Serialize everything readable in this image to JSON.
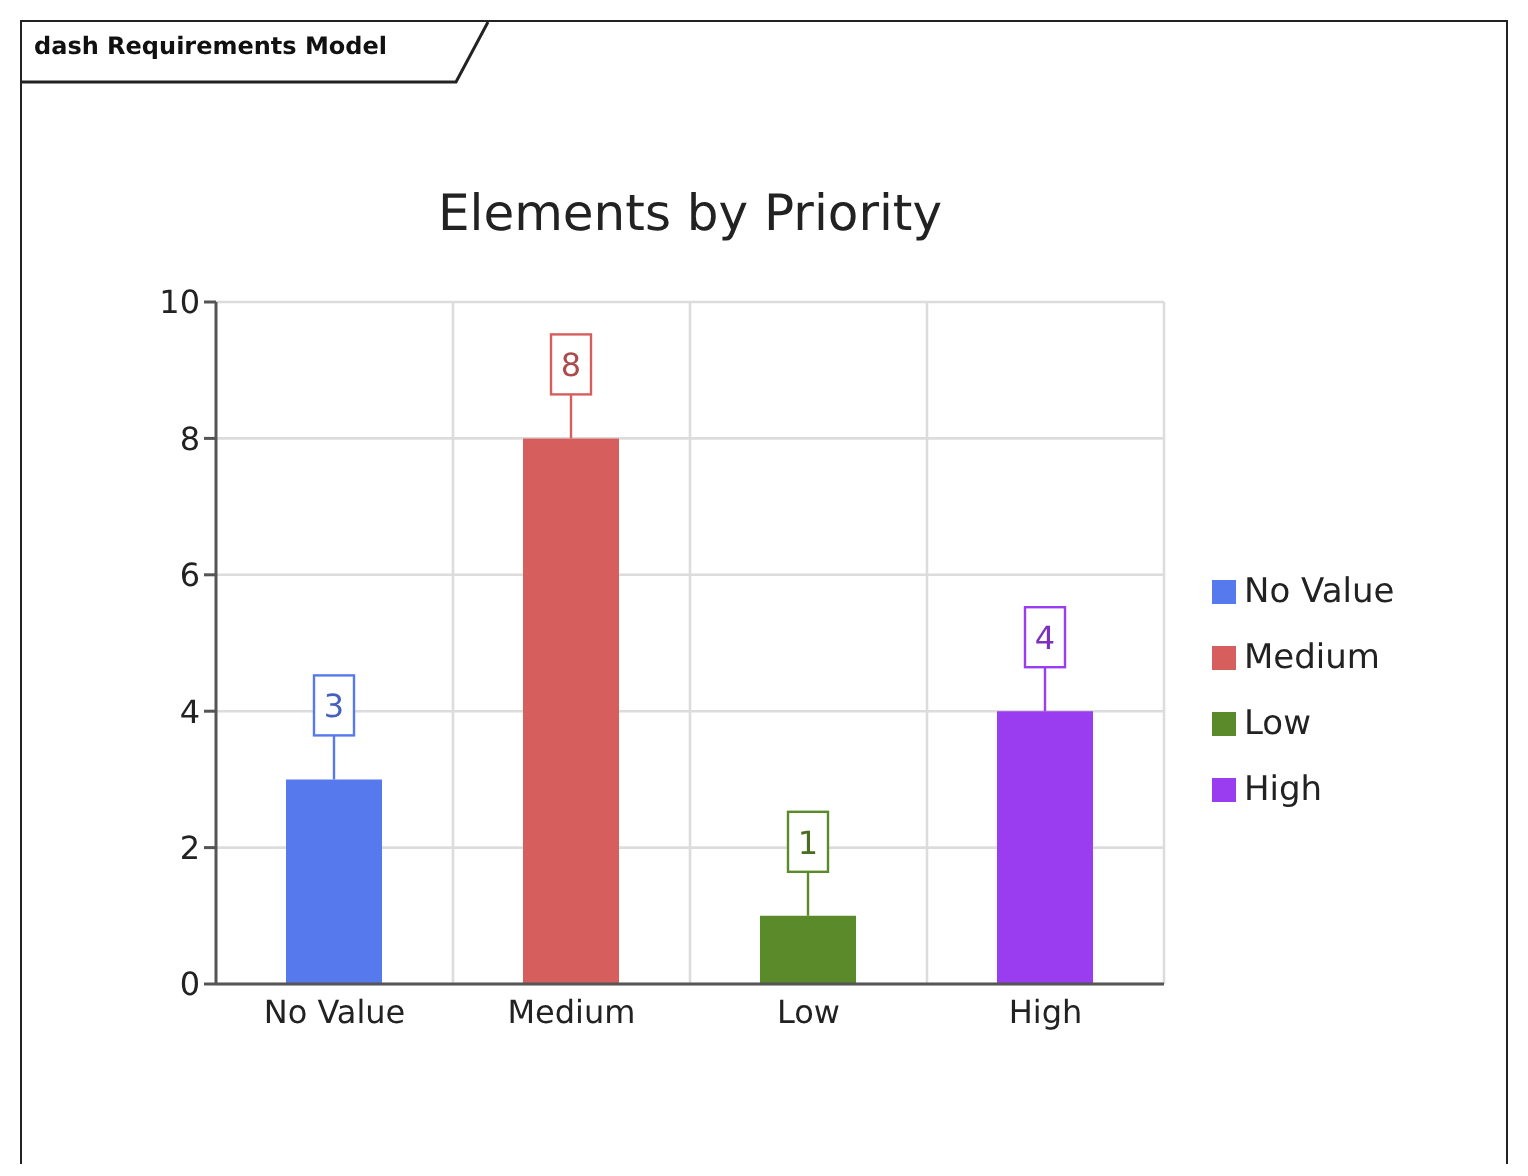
{
  "chart_data": {
    "type": "bar",
    "title": "Elements by Priority",
    "annotations": [
      "dash Requirements Model"
    ],
    "categories": [
      "No Value",
      "Medium",
      "Low",
      "High"
    ],
    "series": [
      {
        "name": "No Value",
        "color": "#5679ee",
        "values": [
          3,
          null,
          null,
          null
        ]
      },
      {
        "name": "Medium",
        "color": "#d65f5e",
        "values": [
          null,
          8,
          null,
          null
        ]
      },
      {
        "name": "Low",
        "color": "#5b8a2b",
        "values": [
          null,
          null,
          1,
          null
        ]
      },
      {
        "name": "High",
        "color": "#9a3cf0",
        "values": [
          null,
          null,
          null,
          4
        ]
      }
    ],
    "ylim": [
      0,
      10
    ],
    "yticks": [
      0,
      2,
      4,
      6,
      8,
      10
    ],
    "grid": true,
    "legend": "right",
    "data_labels": true
  }
}
